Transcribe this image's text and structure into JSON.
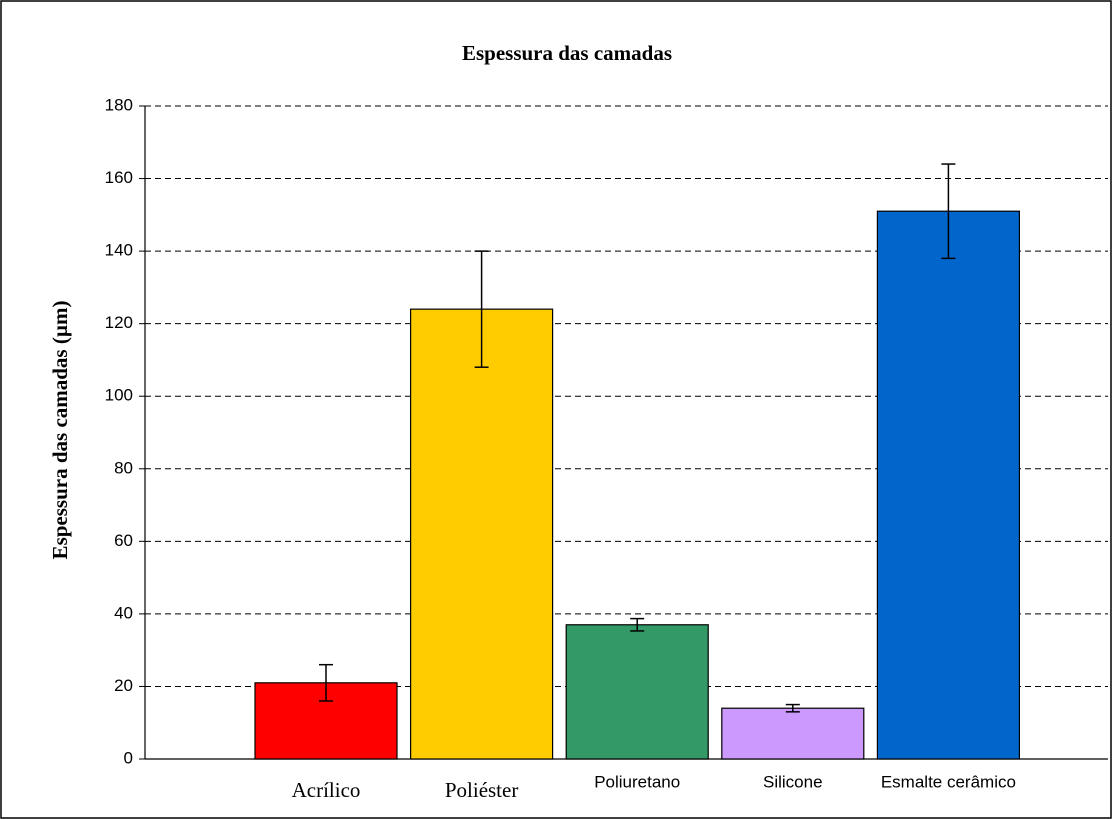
{
  "chart_data": {
    "type": "bar",
    "title": "Espessura das camadas",
    "y_label": "Espessura das camadas (µm)",
    "categories": [
      "Acrílico",
      "Poliéster",
      "Poliuretano",
      "Silicone",
      "Esmalte cerâmico"
    ],
    "values": [
      21,
      124,
      37,
      14,
      151
    ],
    "errors": [
      5,
      16,
      1.7,
      1,
      13
    ],
    "colors": [
      "#ff0000",
      "#ffcc00",
      "#339966",
      "#cc99ff",
      "#0066cc"
    ],
    "ylim": [
      0,
      180
    ],
    "yticks": [
      0,
      20,
      40,
      60,
      80,
      100,
      120,
      140,
      160,
      180
    ],
    "grid": true
  }
}
